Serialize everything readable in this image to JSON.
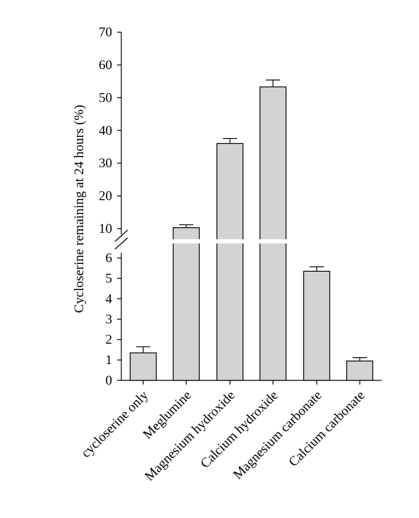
{
  "chart_data": {
    "type": "bar",
    "title": "",
    "xlabel": "",
    "ylabel": "Cycloserine remaining at 24 hours (%)",
    "axis_break": true,
    "lower_segment": {
      "ylim": [
        0,
        6.5
      ],
      "ticks": [
        0,
        1,
        2,
        3,
        4,
        5,
        6
      ]
    },
    "upper_segment": {
      "ylim": [
        6.5,
        70
      ],
      "ticks": [
        10,
        20,
        30,
        40,
        50,
        60,
        70
      ]
    },
    "categories": [
      "cycloserine only",
      "Meglumine",
      "Magnesium hydroxide",
      "Calcium hydroxide",
      "Magnesium carbonate",
      "Calcium carbonate"
    ],
    "values": [
      1.35,
      10.3,
      36.0,
      53.3,
      5.35,
      0.95
    ],
    "errors": [
      0.3,
      0.9,
      1.5,
      2.1,
      0.22,
      0.17
    ],
    "colors": {
      "bar_fill": "#d3d3d3",
      "bar_stroke": "#000000",
      "axis": "#000000"
    }
  }
}
